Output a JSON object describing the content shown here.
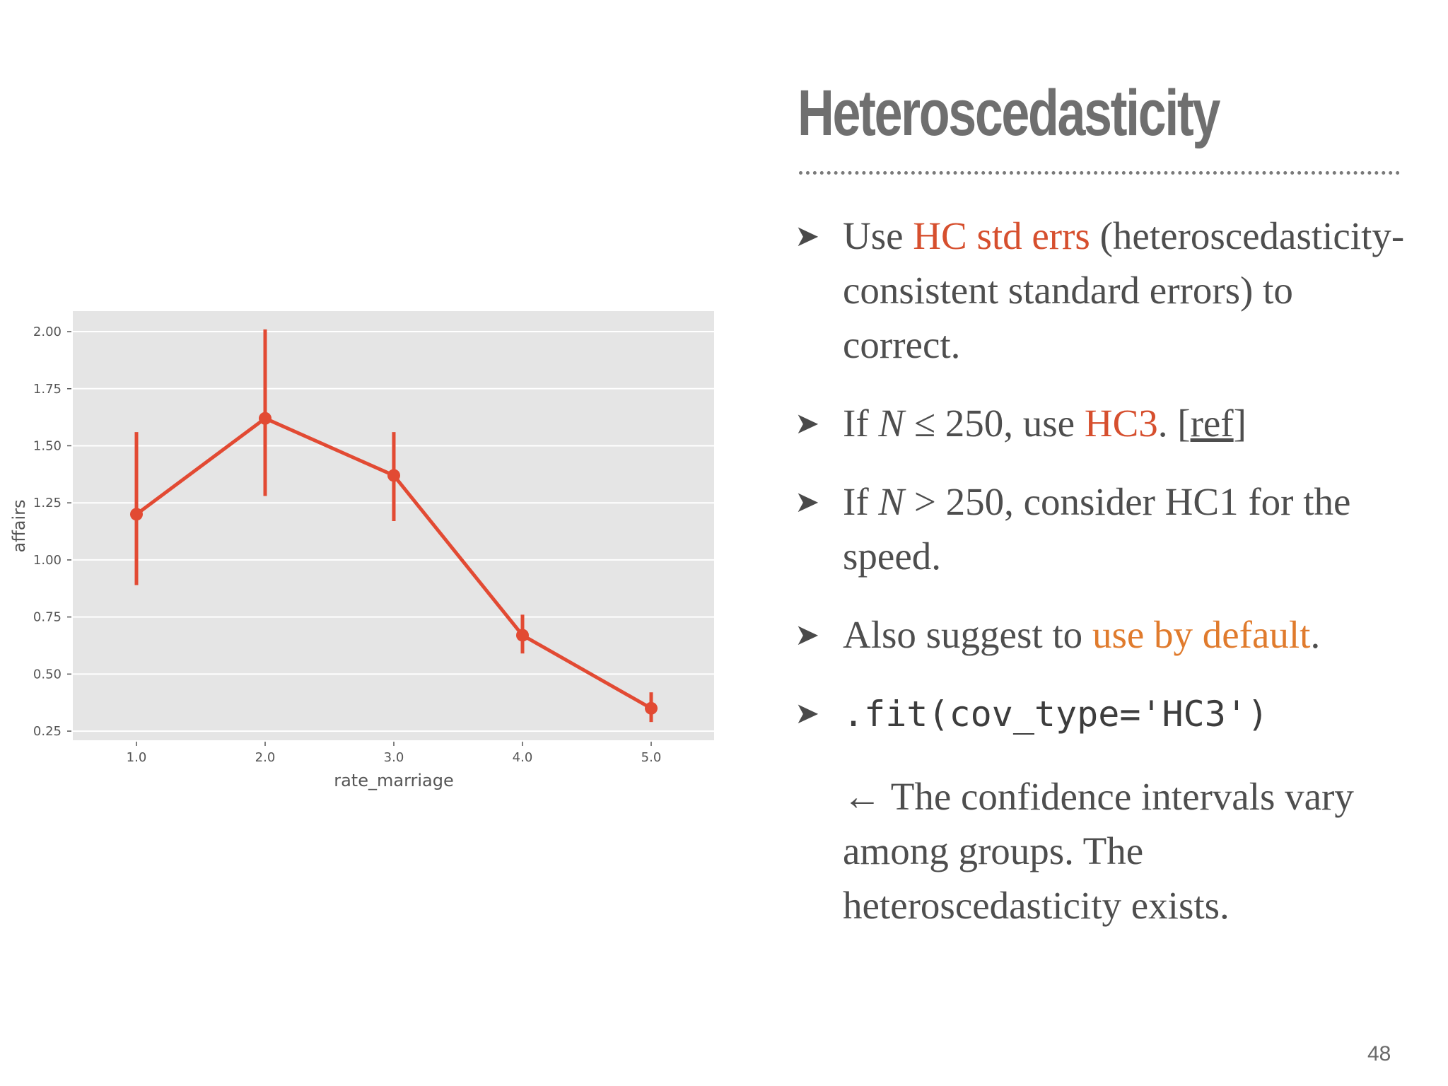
{
  "slide": {
    "title": "Heteroscedasticity",
    "page_number": "48"
  },
  "bullets": [
    {
      "pre": "Use ",
      "highlight": "HC std errs",
      "post": " (heteroscedasticity-consistent standard errors) to correct."
    },
    {
      "pre": "If ",
      "var": "N",
      "mid": " ≤ 250, use ",
      "highlight": "HC3",
      "post": ". [",
      "link": "ref",
      "end": "]"
    },
    {
      "pre": "If ",
      "var": "N",
      "post": " > 250, consider HC1 for the speed."
    },
    {
      "pre": "Also suggest to ",
      "highlight": "use by default",
      "post": "."
    },
    {
      "code": ".fit(cov_type='HC3')"
    }
  ],
  "note": "← The confidence intervals vary among groups. The heteroscedasticity exists.",
  "icons": {
    "bullet": "arrowhead-icon"
  },
  "colors": {
    "accent_red": "#d64f2e",
    "accent_orange": "#e07b2d",
    "plot_background": "#e5e5e5",
    "series": "#e24a33"
  },
  "chart_data": {
    "type": "line",
    "style": "pointplot with error bars",
    "xlabel": "rate_marriage",
    "ylabel": "affairs",
    "categories": [
      "1.0",
      "2.0",
      "3.0",
      "4.0",
      "5.0"
    ],
    "values": [
      1.2,
      1.62,
      1.37,
      0.67,
      0.35
    ],
    "error_low": [
      0.89,
      1.28,
      1.17,
      0.59,
      0.29
    ],
    "error_high": [
      1.56,
      2.01,
      1.56,
      0.76,
      0.42
    ],
    "yticks": [
      "0.25",
      "0.50",
      "0.75",
      "1.00",
      "1.25",
      "1.50",
      "1.75",
      "2.00"
    ],
    "ylim": [
      0.21,
      2.09
    ],
    "grid": true,
    "legend": "none"
  }
}
